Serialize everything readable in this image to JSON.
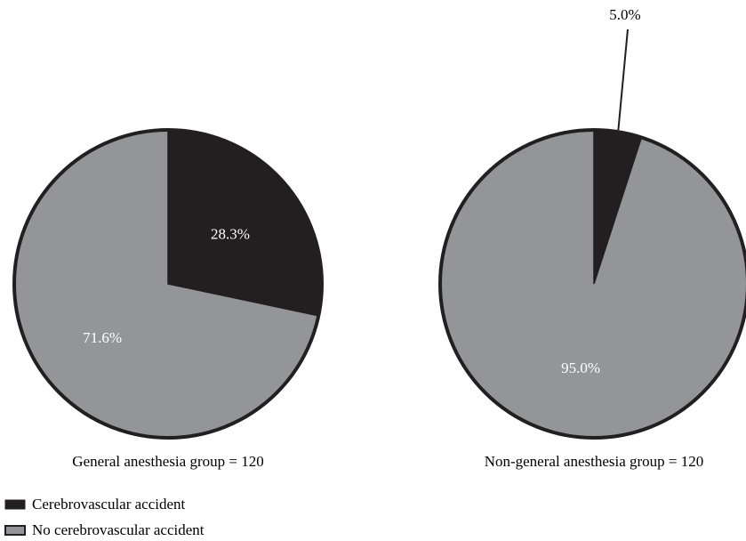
{
  "chart_data": [
    {
      "type": "pie",
      "caption": "General anesthesia group = 120",
      "slices": [
        {
          "name": "Cerebrovascular accident",
          "value": 28.3,
          "label": "28.3%",
          "color": "#231f20",
          "label_color": "#ffffff",
          "callout": false
        },
        {
          "name": "No cerebrovascular accident",
          "value": 71.6,
          "label": "71.6%",
          "color": "#939598",
          "label_color": "#ffffff",
          "callout": false
        }
      ]
    },
    {
      "type": "pie",
      "caption": "Non-general anesthesia group = 120",
      "slices": [
        {
          "name": "Cerebrovascular accident",
          "value": 5.0,
          "label": "5.0%",
          "color": "#231f20",
          "label_color": "#000000",
          "callout": true
        },
        {
          "name": "No cerebrovascular accident",
          "value": 95.0,
          "label": "95.0%",
          "color": "#939598",
          "label_color": "#ffffff",
          "callout": false
        }
      ]
    }
  ],
  "legend": {
    "placement": "bottom-left",
    "items": [
      {
        "label": "Cerebrovascular accident",
        "color": "#231f20"
      },
      {
        "label": "No cerebrovascular accident",
        "color": "#939598"
      }
    ]
  },
  "style": {
    "outline_color": "#231f20",
    "background": "#ffffff"
  }
}
